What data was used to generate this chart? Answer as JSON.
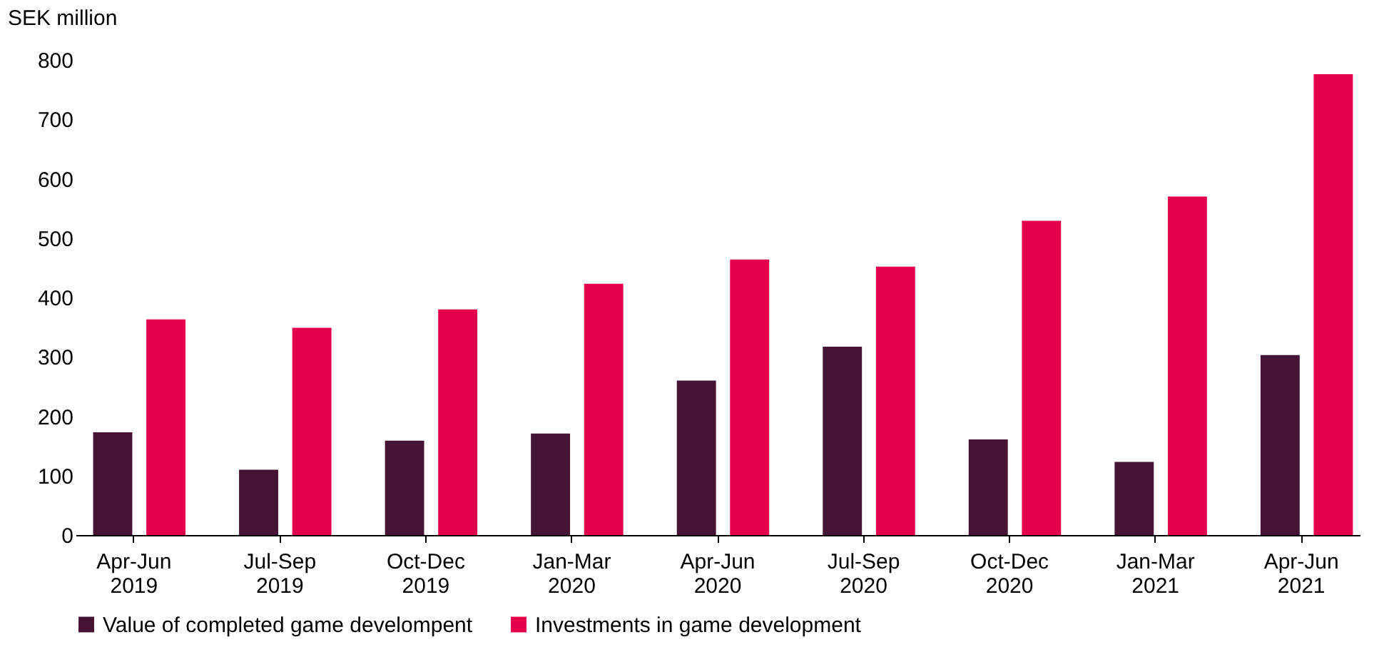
{
  "chart_data": {
    "type": "bar",
    "ylabel": "SEK million",
    "categories": [
      "Apr-Jun 2019",
      "Jul-Sep 2019",
      "Oct-Dec 2019",
      "Jan-Mar 2020",
      "Apr-Jun 2020",
      "Jul-Sep 2020",
      "Oct-Dec 2020",
      "Jan-Mar 2021",
      "Apr-Jun 2021"
    ],
    "series": [
      {
        "name": "Value of completed game develompent",
        "color": "#451432",
        "values": [
          173,
          110,
          159,
          171,
          260,
          317,
          161,
          123,
          303
        ]
      },
      {
        "name": "Investments in game development",
        "color": "#e4004b",
        "values": [
          363,
          349,
          380,
          423,
          464,
          452,
          529,
          570,
          776
        ]
      }
    ],
    "ylim": [
      0,
      800
    ],
    "yticks": [
      0,
      100,
      200,
      300,
      400,
      500,
      600,
      700,
      800
    ],
    "grid": false,
    "legend": "bottom left"
  }
}
